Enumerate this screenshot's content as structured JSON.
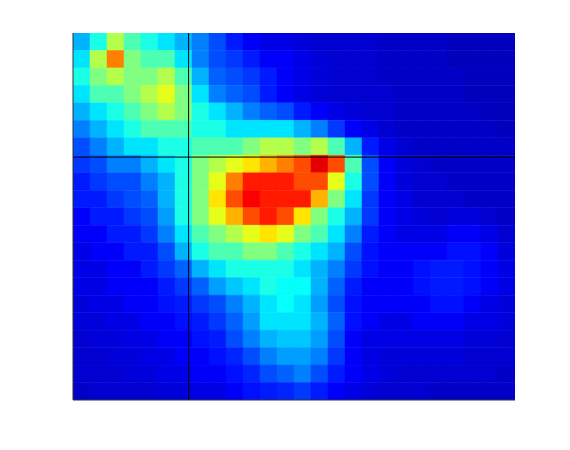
{
  "chart_data": {
    "type": "heatmap",
    "xlim": [
      0,
      26
    ],
    "ylim": [
      0,
      21
    ],
    "zlim": [
      0,
      100
    ],
    "tick_labels": false,
    "crosshair": {
      "x": 6.8,
      "y": 13.9
    },
    "cells": [
      [
        30,
        40,
        55,
        45,
        40,
        35,
        30,
        25,
        20,
        15,
        12,
        10,
        10,
        9,
        8,
        8,
        8,
        8,
        7,
        7,
        7,
        7,
        6,
        6,
        6,
        6
      ],
      [
        35,
        55,
        75,
        50,
        45,
        45,
        35,
        25,
        20,
        18,
        15,
        12,
        12,
        10,
        9,
        8,
        8,
        8,
        7,
        7,
        7,
        7,
        6,
        6,
        6,
        6
      ],
      [
        40,
        50,
        55,
        50,
        50,
        55,
        45,
        30,
        22,
        20,
        18,
        15,
        12,
        10,
        9,
        8,
        8,
        8,
        7,
        7,
        7,
        7,
        7,
        6,
        6,
        6
      ],
      [
        35,
        45,
        45,
        50,
        55,
        60,
        50,
        35,
        25,
        22,
        20,
        15,
        12,
        10,
        9,
        8,
        8,
        8,
        8,
        7,
        7,
        7,
        7,
        6,
        6,
        6
      ],
      [
        30,
        35,
        40,
        45,
        50,
        55,
        50,
        40,
        35,
        30,
        25,
        22,
        20,
        15,
        12,
        10,
        9,
        8,
        8,
        7,
        7,
        7,
        7,
        7,
        6,
        6
      ],
      [
        25,
        30,
        35,
        40,
        45,
        45,
        45,
        40,
        40,
        35,
        35,
        35,
        35,
        30,
        25,
        18,
        12,
        10,
        8,
        7,
        7,
        7,
        7,
        7,
        7,
        6
      ],
      [
        20,
        25,
        30,
        35,
        35,
        40,
        40,
        45,
        45,
        45,
        50,
        55,
        55,
        50,
        55,
        45,
        30,
        15,
        10,
        8,
        7,
        7,
        7,
        7,
        7,
        7
      ],
      [
        18,
        20,
        25,
        25,
        30,
        35,
        40,
        50,
        55,
        60,
        65,
        70,
        75,
        80,
        90,
        80,
        45,
        20,
        12,
        9,
        8,
        7,
        7,
        7,
        7,
        7
      ],
      [
        15,
        18,
        20,
        20,
        25,
        30,
        40,
        50,
        60,
        75,
        85,
        85,
        85,
        80,
        80,
        60,
        40,
        20,
        12,
        9,
        8,
        8,
        7,
        7,
        7,
        7
      ],
      [
        15,
        15,
        18,
        20,
        22,
        30,
        40,
        50,
        65,
        80,
        88,
        85,
        85,
        85,
        70,
        50,
        35,
        18,
        12,
        10,
        8,
        8,
        8,
        7,
        7,
        7
      ],
      [
        12,
        15,
        15,
        18,
        20,
        28,
        40,
        50,
        60,
        70,
        80,
        85,
        80,
        65,
        50,
        40,
        30,
        18,
        12,
        10,
        9,
        8,
        9,
        9,
        8,
        7
      ],
      [
        12,
        12,
        15,
        15,
        18,
        25,
        35,
        45,
        50,
        55,
        60,
        65,
        60,
        50,
        45,
        35,
        25,
        15,
        12,
        10,
        10,
        10,
        12,
        12,
        10,
        8
      ],
      [
        10,
        12,
        12,
        15,
        15,
        20,
        30,
        40,
        45,
        45,
        50,
        50,
        45,
        40,
        35,
        30,
        20,
        14,
        12,
        12,
        12,
        12,
        14,
        14,
        12,
        9
      ],
      [
        10,
        10,
        12,
        12,
        15,
        18,
        22,
        30,
        35,
        40,
        40,
        40,
        40,
        35,
        30,
        25,
        18,
        14,
        12,
        12,
        14,
        15,
        15,
        14,
        12,
        10
      ],
      [
        10,
        10,
        12,
        12,
        12,
        15,
        18,
        22,
        28,
        32,
        35,
        40,
        38,
        38,
        30,
        22,
        15,
        12,
        12,
        12,
        14,
        15,
        15,
        14,
        12,
        10
      ],
      [
        9,
        10,
        10,
        12,
        12,
        14,
        15,
        18,
        20,
        25,
        30,
        35,
        38,
        35,
        28,
        20,
        14,
        12,
        12,
        12,
        12,
        14,
        14,
        12,
        10,
        9
      ],
      [
        9,
        9,
        10,
        10,
        12,
        12,
        14,
        15,
        18,
        22,
        28,
        35,
        35,
        35,
        30,
        22,
        14,
        12,
        10,
        10,
        12,
        12,
        12,
        10,
        10,
        9
      ],
      [
        8,
        9,
        9,
        10,
        10,
        12,
        12,
        14,
        15,
        20,
        25,
        30,
        32,
        32,
        28,
        20,
        12,
        10,
        10,
        10,
        10,
        10,
        10,
        9,
        9,
        8
      ],
      [
        8,
        8,
        9,
        9,
        10,
        10,
        12,
        12,
        14,
        16,
        20,
        25,
        28,
        28,
        25,
        18,
        12,
        10,
        9,
        9,
        9,
        9,
        9,
        8,
        8,
        8
      ],
      [
        8,
        8,
        8,
        9,
        9,
        10,
        10,
        12,
        12,
        14,
        16,
        20,
        22,
        25,
        20,
        15,
        12,
        10,
        9,
        8,
        8,
        8,
        8,
        8,
        8,
        7
      ],
      [
        7,
        8,
        8,
        8,
        8,
        9,
        9,
        10,
        10,
        12,
        14,
        15,
        16,
        18,
        15,
        12,
        10,
        9,
        8,
        8,
        8,
        7,
        7,
        7,
        7,
        7
      ]
    ]
  }
}
